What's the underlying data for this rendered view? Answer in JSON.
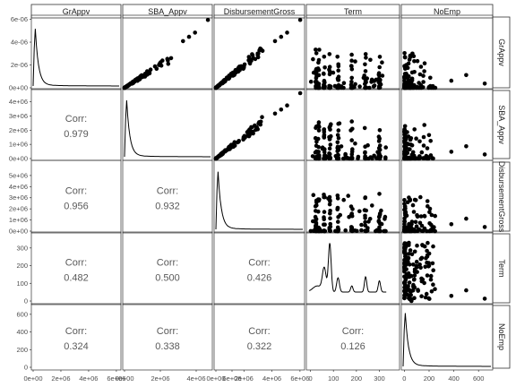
{
  "chart_data": {
    "type": "scatter",
    "variables": [
      "GrAppv",
      "SBA_Appv",
      "DisbursementGross",
      "Term",
      "NoEmp"
    ],
    "strip_labels": [
      "GrAppv",
      "SBA_Appv",
      "DisbursementGross",
      "Term",
      "NoEmp"
    ],
    "corr_label": "Corr:",
    "correlations": [
      {
        "row": 1,
        "col": 0,
        "value": "0.979"
      },
      {
        "row": 2,
        "col": 0,
        "value": "0.956"
      },
      {
        "row": 2,
        "col": 1,
        "value": "0.932"
      },
      {
        "row": 3,
        "col": 0,
        "value": "0.482"
      },
      {
        "row": 3,
        "col": 1,
        "value": "0.500"
      },
      {
        "row": 3,
        "col": 2,
        "value": "0.426"
      },
      {
        "row": 4,
        "col": 0,
        "value": "0.324"
      },
      {
        "row": 4,
        "col": 1,
        "value": "0.338"
      },
      {
        "row": 4,
        "col": 2,
        "value": "0.322"
      },
      {
        "row": 4,
        "col": 3,
        "value": "0.126"
      }
    ],
    "y_ticks": [
      [
        "0e+00",
        "2e-06",
        "4e-06",
        "6e-06"
      ],
      [
        "0e+00",
        "1e+06",
        "2e+06",
        "3e+06",
        "4e+06"
      ],
      [
        "0e+00",
        "1e+06",
        "2e+06",
        "3e+06",
        "4e+06",
        "5e+06"
      ],
      [
        "0",
        "100",
        "200",
        "300"
      ],
      [
        "0",
        "200",
        "400",
        "600"
      ]
    ],
    "x_ticks": [
      [
        "0e+00",
        "2e+06",
        "4e+06",
        "6e+06"
      ],
      [
        "0e+00",
        "2e+06",
        "4e+06",
        "6e+06"
      ],
      [
        "0e+00",
        "2e+06",
        "4e+06",
        "6e+06"
      ],
      [
        "0",
        "100",
        "200",
        "300"
      ],
      [
        "0",
        "200",
        "400",
        "600"
      ]
    ],
    "ranges": [
      [
        0,
        6200000
      ],
      [
        0,
        4800000
      ],
      [
        0,
        6200000
      ],
      [
        -10,
        380
      ],
      [
        -10,
        700
      ]
    ],
    "y_tick_values": [
      [
        0,
        2e-06,
        4e-06,
        6e-06
      ],
      [
        0,
        1000000,
        2000000,
        3000000,
        4000000
      ],
      [
        0,
        1000000,
        2000000,
        3000000,
        4000000,
        5000000
      ],
      [
        0,
        100,
        200,
        300
      ],
      [
        0,
        200,
        400,
        600
      ]
    ],
    "x_tick_values": [
      [
        0,
        2000000,
        4000000,
        6000000
      ],
      [
        0,
        2000000,
        4000000,
        6000000
      ],
      [
        0,
        2000000,
        4000000,
        6000000
      ],
      [
        0,
        100,
        200,
        300
      ],
      [
        0,
        200,
        400,
        600
      ]
    ],
    "density_ylim_row0": [
      0,
      6.2e-06
    ],
    "grid": false,
    "colors": {
      "points": "#000000",
      "strip_fill": "#ffffff",
      "panel_border": "#333333",
      "corr_text": "#595959"
    }
  }
}
